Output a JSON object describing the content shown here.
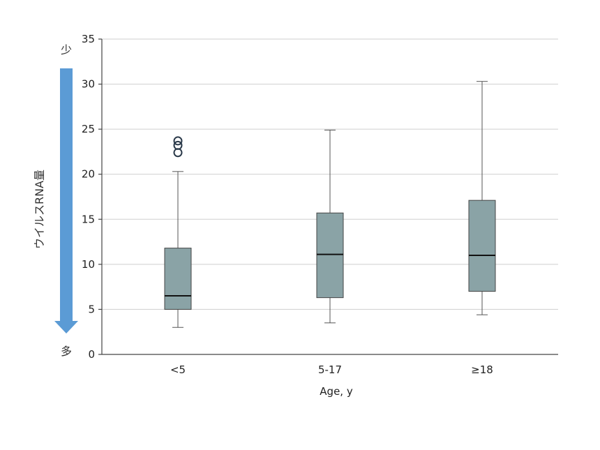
{
  "chart_data": {
    "type": "box",
    "xlabel": "Age, y",
    "ylabel": "ウイルスRNA量",
    "ylim": [
      0,
      35
    ],
    "yticks": [
      "0",
      "5",
      "10",
      "15",
      "20",
      "25",
      "30",
      "35"
    ],
    "grid": true,
    "indicator": {
      "top_label": "少",
      "bottom_label": "多",
      "direction": "down",
      "color": "#5b9bd5"
    },
    "box_color": "#8aa3a6",
    "categories": [
      "<5",
      "5-17",
      "≥18"
    ],
    "boxes": [
      {
        "category": "<5",
        "whisker_low": 3.0,
        "q1": 5.0,
        "median": 6.5,
        "q3": 11.8,
        "whisker_high": 20.3,
        "outliers": [
          22.4,
          23.2,
          23.7
        ]
      },
      {
        "category": "5-17",
        "whisker_low": 3.5,
        "q1": 6.3,
        "median": 11.1,
        "q3": 15.7,
        "whisker_high": 24.9,
        "outliers": []
      },
      {
        "category": "≥18",
        "whisker_low": 4.4,
        "q1": 7.0,
        "median": 11.0,
        "q3": 17.1,
        "whisker_high": 30.3,
        "outliers": []
      }
    ]
  }
}
